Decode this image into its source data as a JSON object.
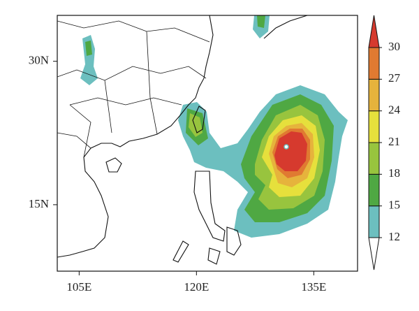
{
  "map": {
    "xlim": [
      102.2,
      140.6
    ],
    "ylim": [
      8.05,
      34.8
    ],
    "xticks": [
      {
        "value": 105,
        "label": "105E"
      },
      {
        "value": 120,
        "label": "120E"
      },
      {
        "value": 135,
        "label": "135E"
      }
    ],
    "yticks": [
      {
        "value": 15,
        "label": "15N"
      },
      {
        "value": 30,
        "label": "30N"
      }
    ]
  },
  "colorbar": {
    "levels": [
      12,
      15,
      18,
      21,
      24,
      27,
      30
    ],
    "colors": [
      "#ffffff",
      "#6cbfbf",
      "#4fa843",
      "#98c43e",
      "#e6e03c",
      "#e6b33c",
      "#e07a31",
      "#d63a2e"
    ]
  }
}
